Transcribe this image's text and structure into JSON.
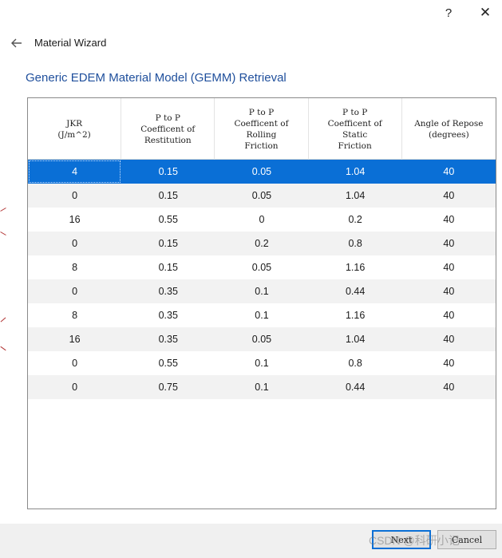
{
  "titlebar": {
    "help_label": "?",
    "close_label": "✕"
  },
  "header": {
    "back_icon": "arrow-left-icon",
    "window_title": "Material Wizard",
    "section_title": "Generic EDEM Material Model (GEMM) Retrieval"
  },
  "table": {
    "columns": [
      "JKR\n(J/m^2)",
      "P to P\nCoefficent of\nRestitution",
      "P to P\nCoefficent of\nRolling\nFriction",
      "P to P\nCoefficent of\nStatic\nFriction",
      "Angle of Repose\n(degrees)"
    ],
    "rows": [
      [
        "4",
        "0.15",
        "0.05",
        "1.04",
        "40"
      ],
      [
        "0",
        "0.15",
        "0.05",
        "1.04",
        "40"
      ],
      [
        "16",
        "0.55",
        "0",
        "0.2",
        "40"
      ],
      [
        "0",
        "0.15",
        "0.2",
        "0.8",
        "40"
      ],
      [
        "8",
        "0.15",
        "0.05",
        "1.16",
        "40"
      ],
      [
        "0",
        "0.35",
        "0.1",
        "0.44",
        "40"
      ],
      [
        "8",
        "0.35",
        "0.1",
        "1.16",
        "40"
      ],
      [
        "16",
        "0.35",
        "0.05",
        "1.04",
        "40"
      ],
      [
        "0",
        "0.55",
        "0.1",
        "0.8",
        "40"
      ],
      [
        "0",
        "0.75",
        "0.1",
        "0.44",
        "40"
      ]
    ],
    "selected_row": 0
  },
  "footer": {
    "next_label": "Next",
    "cancel_label": "Cancel"
  },
  "watermark": "CSDN @科研小记",
  "colors": {
    "selection": "#0a6fd6",
    "title": "#1f4f9c",
    "alt_row": "#f2f2f2"
  }
}
